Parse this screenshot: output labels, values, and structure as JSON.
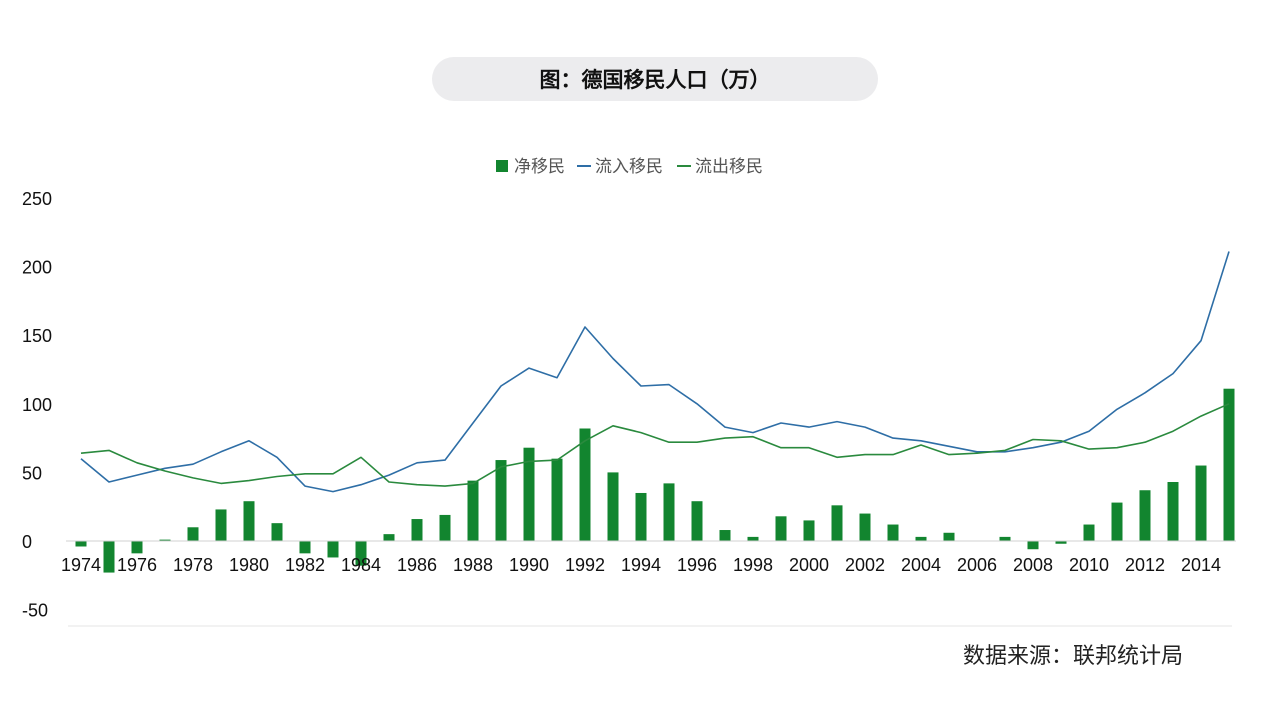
{
  "title": "图：德国移民人口（万）",
  "source": "数据来源：联邦统计局",
  "colors": {
    "net_bar": "#12852f",
    "inflow_line": "#2e6ea6",
    "outflow_line": "#2a8a3e",
    "axis_text": "#111111",
    "legend_text": "#555555"
  },
  "chart_data": {
    "type": "bar+line",
    "x": [
      1974,
      1975,
      1976,
      1977,
      1978,
      1979,
      1980,
      1981,
      1982,
      1983,
      1984,
      1985,
      1986,
      1987,
      1988,
      1989,
      1990,
      1991,
      1992,
      1993,
      1994,
      1995,
      1996,
      1997,
      1998,
      1999,
      2000,
      2001,
      2002,
      2003,
      2004,
      2005,
      2006,
      2007,
      2008,
      2009,
      2010,
      2011,
      2012,
      2013,
      2014,
      2015
    ],
    "x_tick_labels": [
      "1974",
      "1976",
      "1978",
      "1980",
      "1982",
      "1984",
      "1986",
      "1988",
      "1990",
      "1992",
      "1994",
      "1996",
      "1998",
      "2000",
      "2002",
      "2004",
      "2006",
      "2008",
      "2010",
      "2012",
      "2014"
    ],
    "y_ticks": [
      "-50",
      "0",
      "50",
      "100",
      "150",
      "200",
      "250"
    ],
    "ylim": [
      -50,
      250
    ],
    "legend": [
      "净移民",
      "流入移民",
      "流出移民"
    ],
    "legend_position": "top-center",
    "grid": false,
    "series": [
      {
        "name": "净移民",
        "type": "bar",
        "values": [
          -4,
          -23,
          -9,
          1,
          10,
          23,
          29,
          13,
          -9,
          -12,
          -18,
          5,
          16,
          19,
          44,
          59,
          68,
          60,
          82,
          50,
          35,
          42,
          29,
          8,
          3,
          18,
          15,
          26,
          20,
          12,
          3,
          6,
          0,
          3,
          -6,
          -2,
          12,
          28,
          37,
          43,
          55,
          111
        ]
      },
      {
        "name": "流入移民",
        "type": "line",
        "values": [
          60,
          43,
          48,
          53,
          56,
          65,
          73,
          61,
          40,
          36,
          41,
          48,
          57,
          59,
          86,
          113,
          126,
          119,
          156,
          133,
          113,
          114,
          100,
          83,
          79,
          86,
          83,
          87,
          83,
          75,
          73,
          69,
          65,
          65,
          68,
          72,
          80,
          96,
          108,
          122,
          146,
          211
        ]
      },
      {
        "name": "流出移民",
        "type": "line",
        "values": [
          64,
          66,
          57,
          51,
          46,
          42,
          44,
          47,
          49,
          49,
          61,
          43,
          41,
          40,
          42,
          54,
          58,
          59,
          73,
          84,
          79,
          72,
          72,
          75,
          76,
          68,
          68,
          61,
          63,
          63,
          70,
          63,
          64,
          66,
          74,
          73,
          67,
          68,
          72,
          80,
          91,
          100
        ]
      }
    ]
  }
}
